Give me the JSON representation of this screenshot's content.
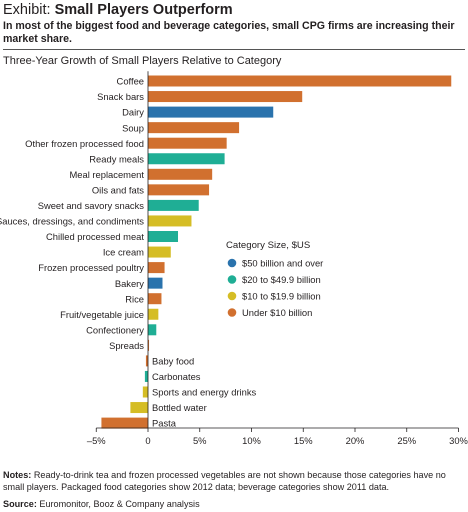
{
  "header": {
    "title_lead": "Exhibit: ",
    "title_bold": "Small Players Outperform",
    "subtitle": "In most of the biggest food and beverage categories, small CPG firms are increasing their market share."
  },
  "footer": {
    "notes_label": "Notes:",
    "notes_text": " Ready-to-drink tea and frozen processed vegetables are not shown because those categories have no small players. Packaged food categories show 2012 data; beverage categories show 2011 data.",
    "source_label": "Source:",
    "source_text": " Euromonitor, Booz & Company analysis"
  },
  "colors": {
    "$50 billion and over": "#2a73ad",
    "$20 to $49.9 billion": "#1fae95",
    "$10 to $19.9 billion": "#d5bd25",
    "Under $10 billion": "#d1702f",
    "axis": "#231f20"
  },
  "chart_data": {
    "type": "bar",
    "orientation": "horizontal",
    "title": "Three-Year Growth of Small Players Relative to Category",
    "xlim": [
      -5,
      30
    ],
    "x_ticks": [
      "–5%",
      "0",
      "5%",
      "10%",
      "15%",
      "20%",
      "25%",
      "30%"
    ],
    "x_tick_values": [
      -5,
      0,
      5,
      10,
      15,
      20,
      25,
      30
    ],
    "legend_title": "Category Size, $US",
    "legend": [
      "$50 billion and over",
      "$20 to $49.9 billion",
      "$10 to $19.9 billion",
      "Under $10 billion"
    ],
    "legend_position": "right",
    "categories": [
      "Coffee",
      "Snack bars",
      "Dairy",
      "Soup",
      "Other frozen processed food",
      "Ready meals",
      "Meal replacement",
      "Oils and fats",
      "Sweet and savory snacks",
      "Sauces, dressings, and condiments",
      "Chilled processed meat",
      "Ice cream",
      "Frozen processed poultry",
      "Bakery",
      "Rice",
      "Fruit/vegetable juice",
      "Confectionery",
      "Spreads",
      "Baby food",
      "Carbonates",
      "Sports and energy drinks",
      "Bottled water",
      "Pasta"
    ],
    "values": [
      29.3,
      14.9,
      12.1,
      8.8,
      7.6,
      7.4,
      6.2,
      5.9,
      4.9,
      4.2,
      2.9,
      2.2,
      1.6,
      1.4,
      1.3,
      1.0,
      0.8,
      0.1,
      -0.2,
      -0.3,
      -0.5,
      -1.7,
      -4.5
    ],
    "size_class": [
      "Under $10 billion",
      "Under $10 billion",
      "$50 billion and over",
      "Under $10 billion",
      "Under $10 billion",
      "$20 to $49.9 billion",
      "Under $10 billion",
      "Under $10 billion",
      "$20 to $49.9 billion",
      "$10 to $19.9 billion",
      "$20 to $49.9 billion",
      "$10 to $19.9 billion",
      "Under $10 billion",
      "$50 billion and over",
      "Under $10 billion",
      "$10 to $19.9 billion",
      "$20 to $49.9 billion",
      "Under $10 billion",
      "Under $10 billion",
      "$20 to $49.9 billion",
      "$10 to $19.9 billion",
      "$10 to $19.9 billion",
      "Under $10 billion"
    ]
  }
}
